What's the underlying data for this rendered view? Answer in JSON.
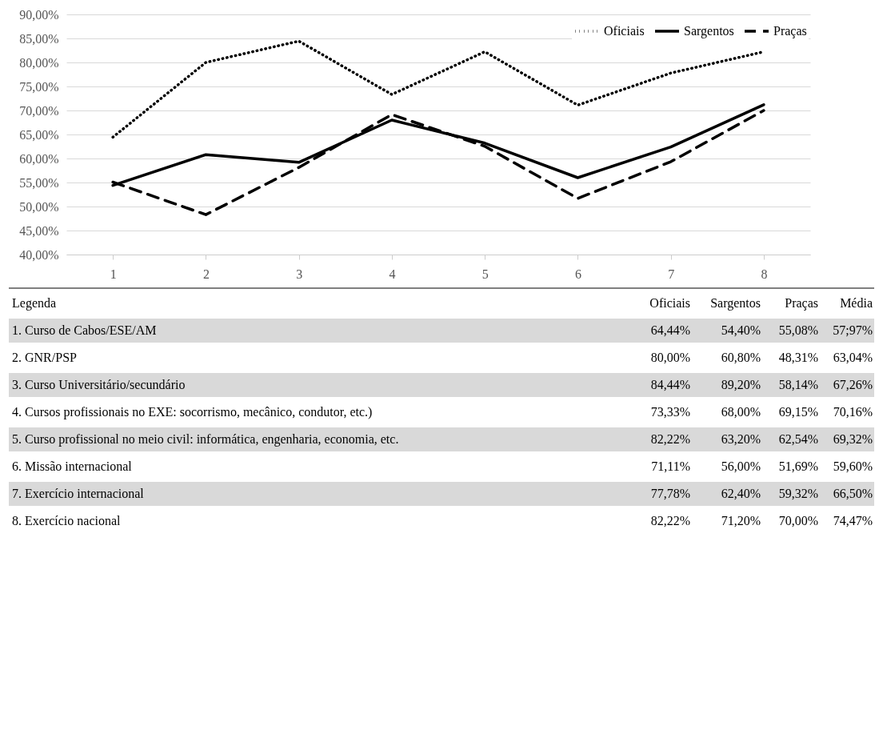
{
  "chart_data": [
    {
      "type": "line",
      "categories": [
        "1",
        "2",
        "3",
        "4",
        "5",
        "6",
        "7",
        "8"
      ],
      "series": [
        {
          "name": "Oficiais",
          "color": "#000000",
          "line_style": "dotted",
          "values": [
            64.44,
            80.0,
            84.44,
            73.33,
            82.22,
            71.11,
            77.78,
            82.22
          ]
        },
        {
          "name": "Sargentos",
          "color": "#000000",
          "line_style": "solid",
          "values": [
            54.4,
            60.8,
            59.2,
            68.0,
            63.2,
            56.0,
            62.4,
            71.2
          ]
        },
        {
          "name": "Praças",
          "color": "#000000",
          "line_style": "dashed",
          "values": [
            55.08,
            48.31,
            58.14,
            69.15,
            62.54,
            51.69,
            59.32,
            70.0
          ]
        }
      ],
      "ylim": [
        40,
        90
      ],
      "yticks": [
        {
          "value": 40,
          "label": "40,00%"
        },
        {
          "value": 45,
          "label": "45,00%"
        },
        {
          "value": 50,
          "label": "50,00%"
        },
        {
          "value": 55,
          "label": "55,00%"
        },
        {
          "value": 60,
          "label": "60,00%"
        },
        {
          "value": 65,
          "label": "65,00%"
        },
        {
          "value": 70,
          "label": "70,00%"
        },
        {
          "value": 75,
          "label": "75,00%"
        },
        {
          "value": 80,
          "label": "80,00%"
        },
        {
          "value": 85,
          "label": "85,00%"
        },
        {
          "value": 90,
          "label": "90,00%"
        }
      ],
      "grid": "y",
      "legend": "top right",
      "marker": "none"
    },
    {
      "type": "other",
      "annotations": [
        "Legenda",
        "Oficiais",
        "Sargentos",
        "Praças",
        "Média",
        "1. Curso de Cabos/ESE/AM",
        "64,44%",
        "54,40%",
        "55,08%",
        "57;97%",
        "2. GNR/PSP",
        "80,00%",
        "60,80%",
        "48,31%",
        "63,04%",
        "3. Curso Universitário/secundário",
        "84,44%",
        "89,20%",
        "58,14%",
        "67,26%",
        "4. Cursos profissionais no EXE: socorrismo, mecânico, condutor, etc.)",
        "73,33%",
        "68,00%",
        "69,15%",
        "70,16%",
        "5. Curso profissional no meio civil: informática, engenharia, economia, etc.",
        "82,22%",
        "63,20%",
        "62,54%",
        "69,32%",
        "6. Missão internacional",
        "71,11%",
        "56,00%",
        "51,69%",
        "59,60%",
        "7. Exercício internacional",
        "77,78%",
        "62,40%",
        "59,32%",
        "66,50%",
        "8. Exercício nacional",
        "82,22%",
        "71,20%",
        "70,00%",
        "74,47%"
      ]
    }
  ]
}
